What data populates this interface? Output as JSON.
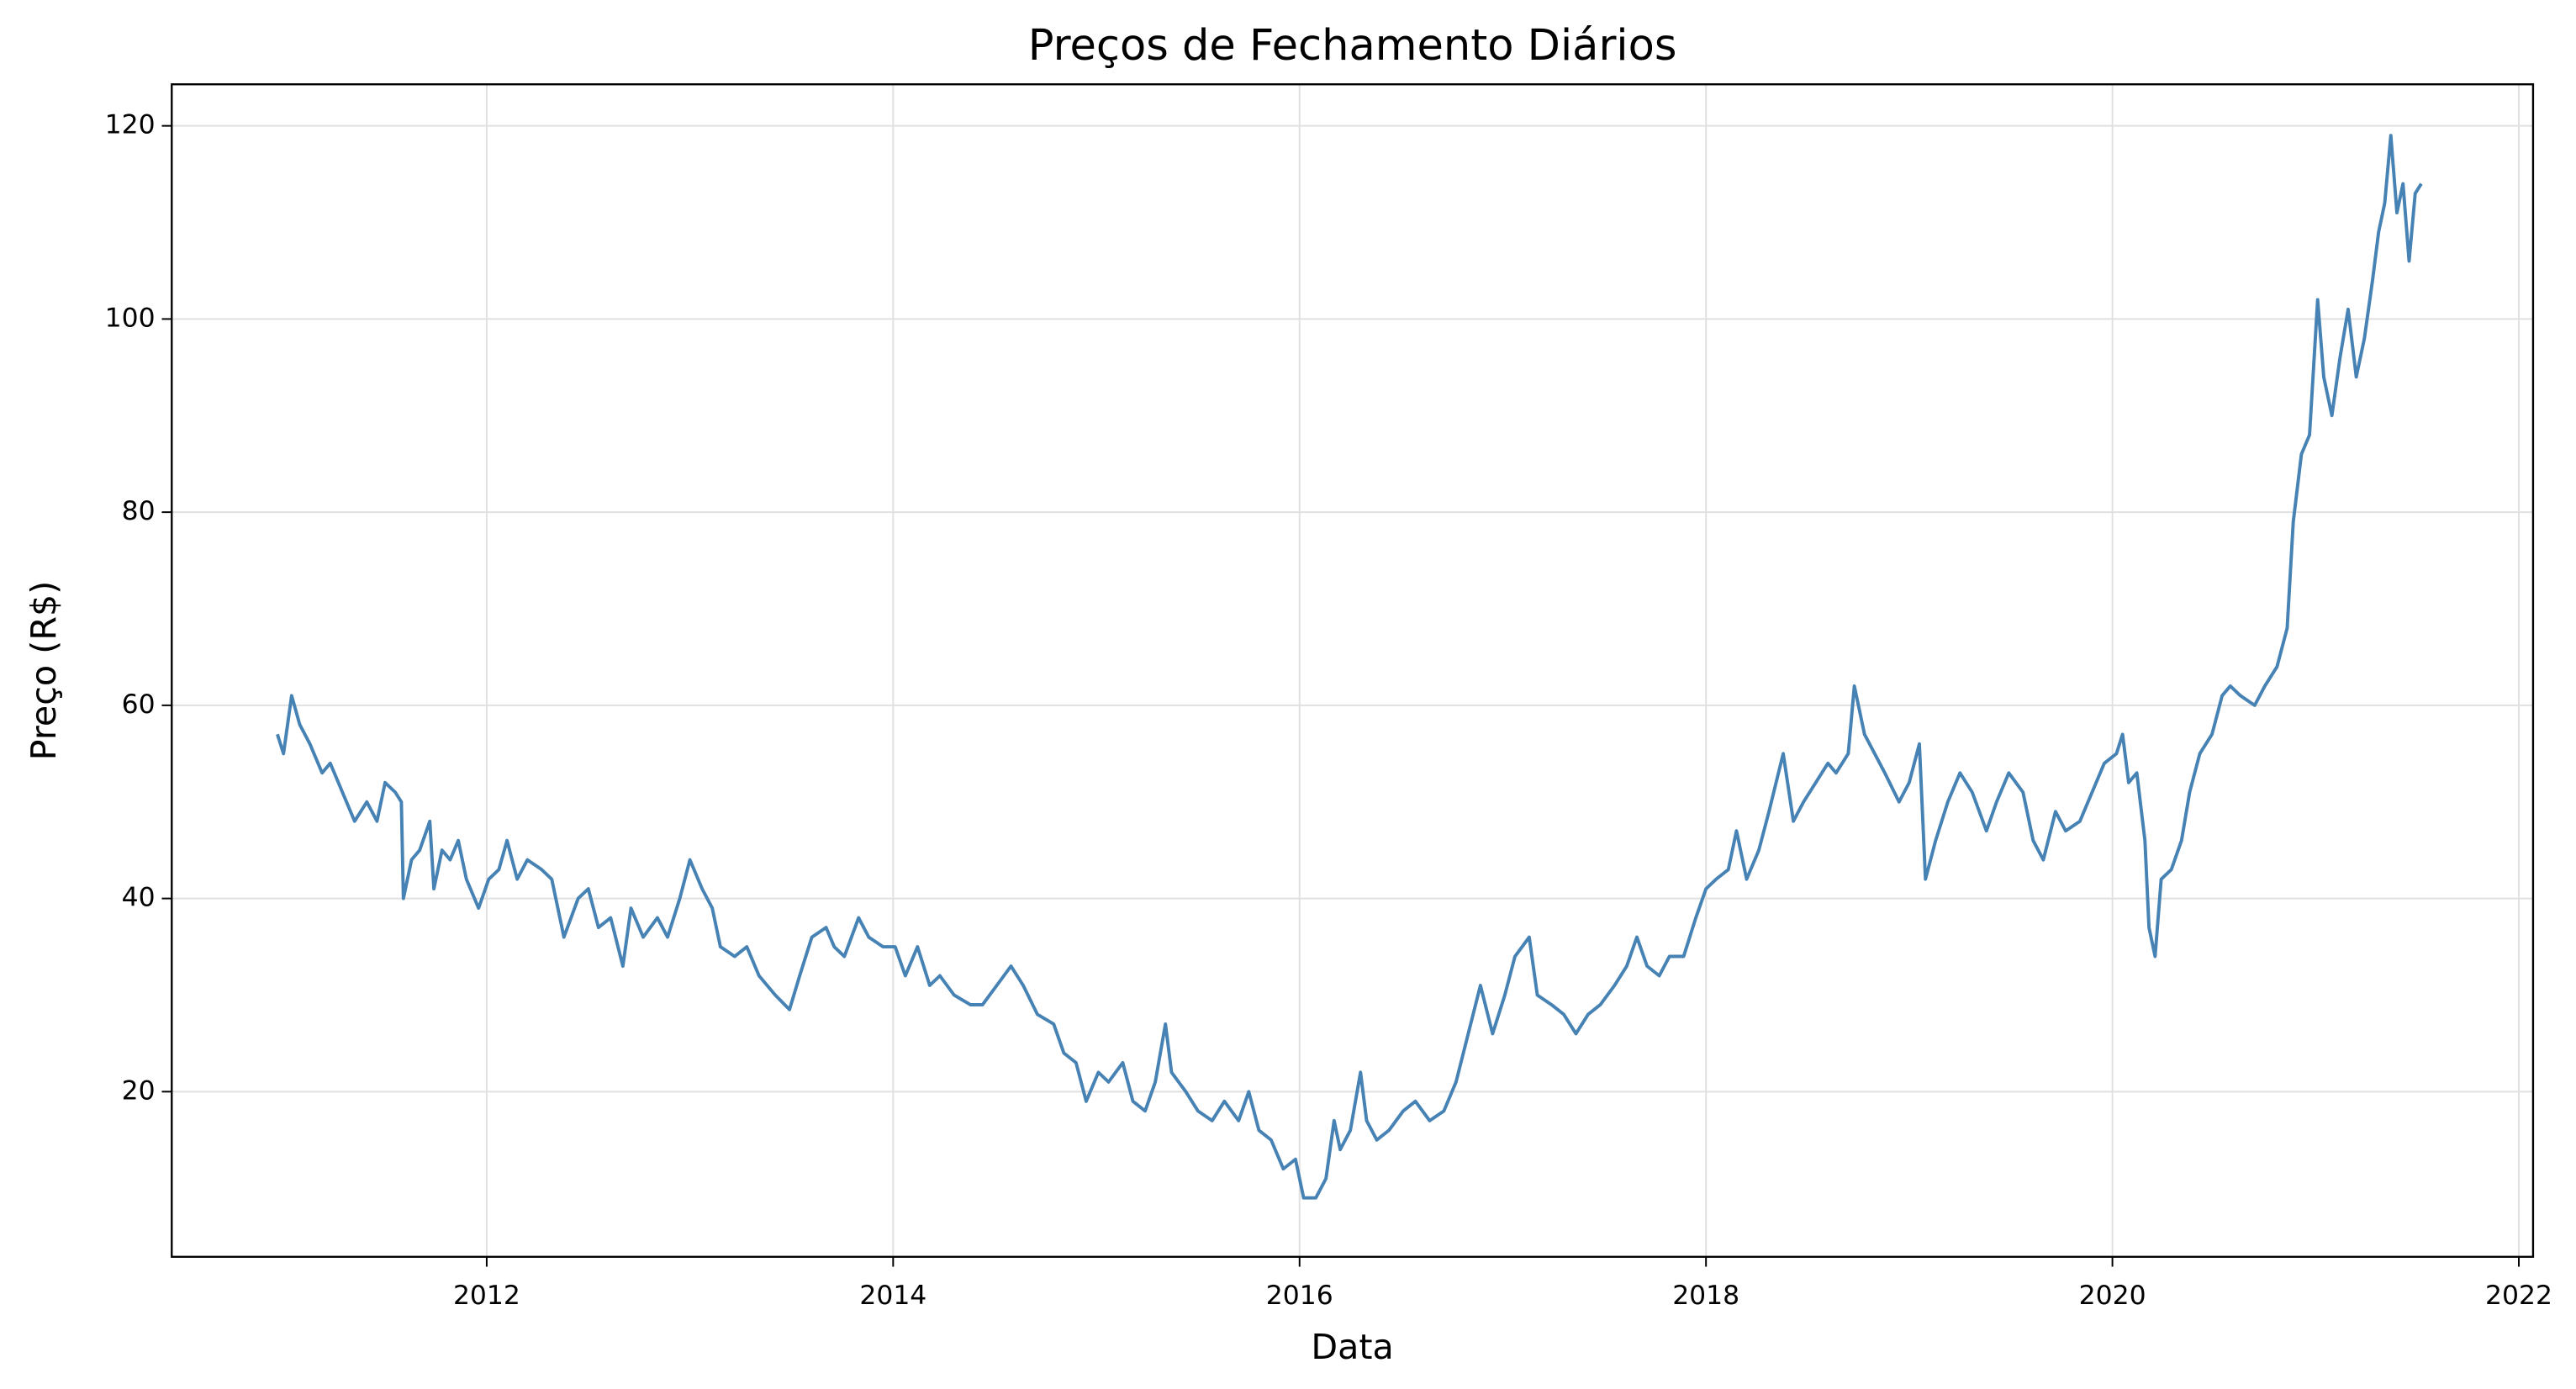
{
  "chart_data": {
    "type": "line",
    "title": "Preços de Fechamento Diários",
    "x_label": "Data",
    "y_label": "Preço (R$)",
    "x": [
      2010.97,
      2011.0,
      2011.04,
      2011.08,
      2011.13,
      2011.19,
      2011.23,
      2011.29,
      2011.35,
      2011.41,
      2011.46,
      2011.5,
      2011.55,
      2011.58,
      2011.59,
      2011.63,
      2011.67,
      2011.72,
      2011.74,
      2011.78,
      2011.82,
      2011.86,
      2011.9,
      2011.96,
      2012.01,
      2012.06,
      2012.1,
      2012.15,
      2012.2,
      2012.27,
      2012.32,
      2012.38,
      2012.45,
      2012.5,
      2012.55,
      2012.61,
      2012.67,
      2012.71,
      2012.77,
      2012.84,
      2012.89,
      2012.95,
      2013.0,
      2013.06,
      2013.11,
      2013.15,
      2013.22,
      2013.28,
      2013.34,
      2013.42,
      2013.49,
      2013.54,
      2013.6,
      2013.67,
      2013.71,
      2013.76,
      2013.83,
      2013.88,
      2013.95,
      2014.01,
      2014.06,
      2014.12,
      2014.18,
      2014.23,
      2014.3,
      2014.38,
      2014.44,
      2014.51,
      2014.58,
      2014.64,
      2014.71,
      2014.79,
      2014.84,
      2014.9,
      2014.95,
      2015.01,
      2015.06,
      2015.13,
      2015.18,
      2015.24,
      2015.29,
      2015.34,
      2015.37,
      2015.44,
      2015.5,
      2015.57,
      2015.63,
      2015.7,
      2015.75,
      2015.8,
      2015.86,
      2015.92,
      2015.98,
      2016.02,
      2016.08,
      2016.13,
      2016.17,
      2016.2,
      2016.25,
      2016.3,
      2016.33,
      2016.38,
      2016.44,
      2016.51,
      2016.57,
      2016.64,
      2016.71,
      2016.77,
      2016.83,
      2016.89,
      2016.95,
      2017.01,
      2017.06,
      2017.13,
      2017.17,
      2017.24,
      2017.3,
      2017.36,
      2017.42,
      2017.48,
      2017.55,
      2017.61,
      2017.66,
      2017.71,
      2017.77,
      2017.82,
      2017.89,
      2017.95,
      2018.0,
      2018.05,
      2018.11,
      2018.15,
      2018.2,
      2018.26,
      2018.31,
      2018.38,
      2018.43,
      2018.48,
      2018.54,
      2018.6,
      2018.64,
      2018.7,
      2018.73,
      2018.78,
      2018.83,
      2018.88,
      2018.95,
      2019.0,
      2019.05,
      2019.08,
      2019.13,
      2019.19,
      2019.25,
      2019.31,
      2019.38,
      2019.43,
      2019.49,
      2019.56,
      2019.61,
      2019.66,
      2019.72,
      2019.77,
      2019.84,
      2019.9,
      2019.96,
      2020.02,
      2020.05,
      2020.08,
      2020.12,
      2020.16,
      2020.18,
      2020.21,
      2020.24,
      2020.29,
      2020.34,
      2020.38,
      2020.43,
      2020.49,
      2020.54,
      2020.58,
      2020.63,
      2020.7,
      2020.75,
      2020.81,
      2020.86,
      2020.89,
      2020.93,
      2020.97,
      2021.01,
      2021.04,
      2021.08,
      2021.12,
      2021.16,
      2021.2,
      2021.24,
      2021.28,
      2021.31,
      2021.34,
      2021.37,
      2021.4,
      2021.43,
      2021.46,
      2021.49,
      2021.52
    ],
    "series": [
      {
        "name": "Preço",
        "color": "#4682b4",
        "values": [
          57,
          55,
          61,
          58,
          56,
          53,
          54,
          51,
          48,
          50,
          48,
          52,
          51,
          50,
          40,
          44,
          45,
          48,
          41,
          45,
          44,
          46,
          42,
          39,
          42,
          43,
          46,
          42,
          44,
          43,
          42,
          36,
          40,
          41,
          37,
          38,
          33,
          39,
          36,
          38,
          36,
          40,
          44,
          41,
          39,
          35,
          34,
          35,
          32,
          30,
          28.5,
          32,
          36,
          37,
          35,
          34,
          38,
          36,
          35,
          35,
          32,
          35,
          31,
          32,
          30,
          29,
          29,
          31,
          33,
          31,
          28,
          27,
          24,
          23,
          19,
          22,
          21,
          23,
          19,
          18,
          21,
          27,
          22,
          20,
          18,
          17,
          19,
          17,
          20,
          16,
          15,
          12,
          13,
          9,
          9,
          11,
          17,
          14,
          16,
          22,
          17,
          15,
          16,
          18,
          19,
          17,
          18,
          21,
          26,
          31,
          26,
          30,
          34,
          36,
          30,
          29,
          28,
          26,
          28,
          29,
          31,
          33,
          36,
          33,
          32,
          34,
          34,
          38,
          41,
          42,
          43,
          47,
          42,
          45,
          49,
          55,
          48,
          50,
          52,
          54,
          53,
          55,
          62,
          57,
          55,
          53,
          50,
          52,
          56,
          42,
          46,
          50,
          53,
          51,
          47,
          50,
          53,
          51,
          46,
          44,
          49,
          47,
          48,
          51,
          54,
          55,
          57,
          52,
          53,
          46,
          37,
          34,
          42,
          43,
          46,
          51,
          55,
          57,
          61,
          62,
          61,
          60,
          62,
          64,
          68,
          79,
          86,
          88,
          102,
          94,
          90,
          96,
          101,
          94,
          98,
          104,
          109,
          112,
          119,
          111,
          114,
          106,
          113,
          114
        ]
      }
    ],
    "xlim": [
      2010.45,
      2022.07
    ],
    "xticks": [
      2012,
      2014,
      2016,
      2018,
      2020,
      2022
    ],
    "ylim": [
      2.9,
      124.3
    ],
    "yticks": [
      20,
      40,
      60,
      80,
      100,
      120
    ],
    "grid": true
  }
}
